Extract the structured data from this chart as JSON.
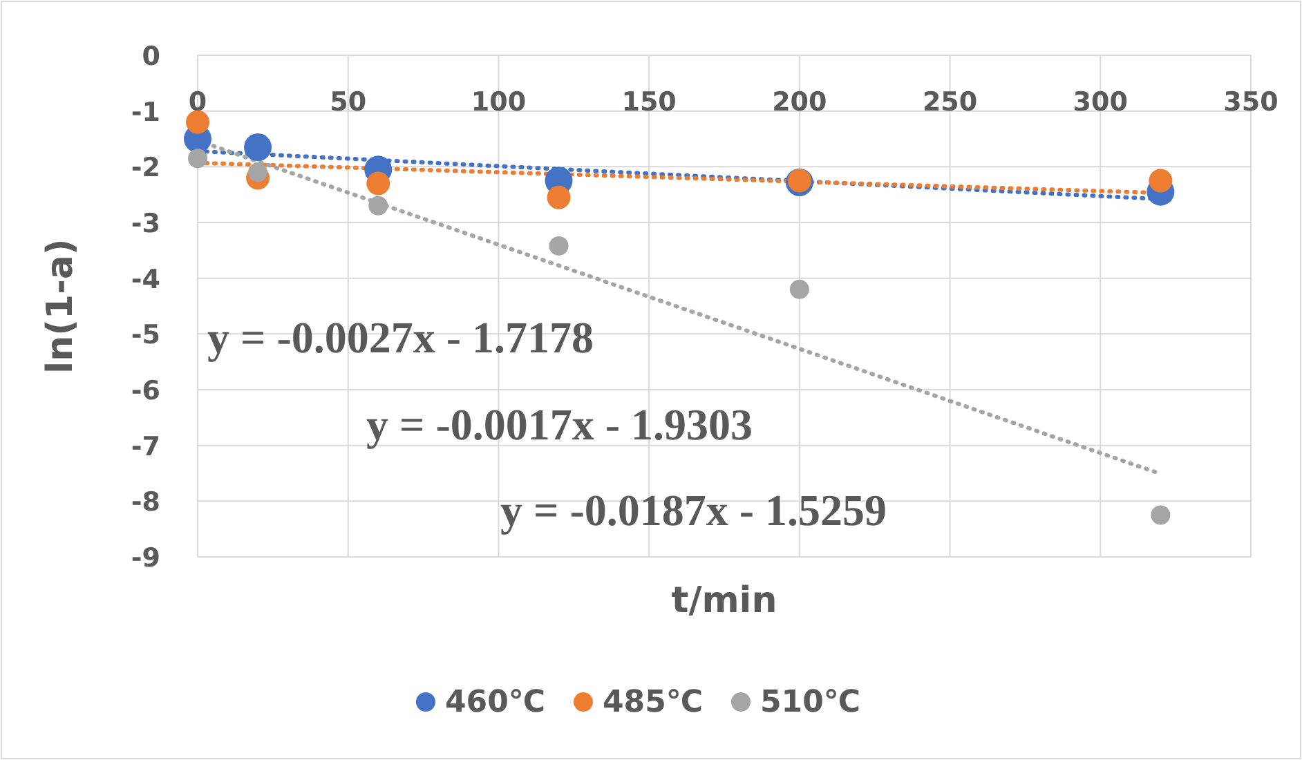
{
  "chart_data": {
    "type": "scatter",
    "xlabel": "t/min",
    "ylabel": "ln(1-a)",
    "xlim": [
      0,
      350
    ],
    "xticks": [
      0,
      50,
      100,
      150,
      200,
      250,
      300,
      350
    ],
    "ylim": [
      -9,
      0
    ],
    "yticks": [
      0,
      -1,
      -2,
      -3,
      -4,
      -5,
      -6,
      -7,
      -8,
      -9
    ],
    "grid": true,
    "legend": "bottom",
    "marker": "circle",
    "series": [
      {
        "name": "460℃",
        "color": "#4472c4",
        "x": [
          0,
          20,
          60,
          120,
          200,
          320
        ],
        "values": [
          -1.5,
          -1.65,
          -2.05,
          -2.25,
          -2.28,
          -2.45
        ]
      },
      {
        "name": "485℃",
        "color": "#ed7d31",
        "x": [
          0,
          20,
          60,
          120,
          200,
          320
        ],
        "values": [
          -1.2,
          -2.2,
          -2.3,
          -2.55,
          -2.25,
          -2.25
        ]
      },
      {
        "name": "510℃",
        "color": "#a5a5a5",
        "x": [
          0,
          20,
          60,
          120,
          200,
          320
        ],
        "values": [
          -1.85,
          -2.1,
          -2.7,
          -3.42,
          -4.2,
          -8.25
        ]
      },
      {
        "type": "line",
        "color": "#4472c4",
        "line_style": "dotted",
        "marker": "none",
        "x": [
          0,
          320
        ],
        "values": [
          -1.72,
          -2.58
        ]
      },
      {
        "type": "line",
        "color": "#ed7d31",
        "line_style": "dotted",
        "marker": "none",
        "x": [
          0,
          320
        ],
        "values": [
          -1.93,
          -2.47
        ]
      },
      {
        "type": "line",
        "color": "#a5a5a5",
        "line_style": "dotted",
        "marker": "none",
        "x": [
          0,
          320
        ],
        "values": [
          -1.53,
          -7.51
        ]
      }
    ],
    "annotations": [
      "y = -0.0027x - 1.7178",
      "y = -0.0017x - 1.9303",
      "y = -0.0187x - 1.5259"
    ]
  }
}
